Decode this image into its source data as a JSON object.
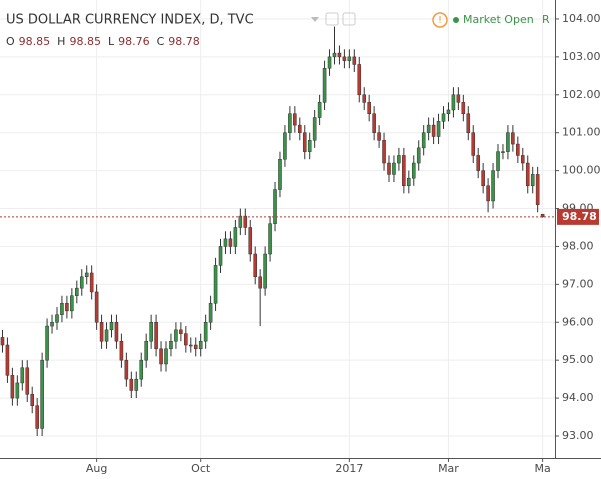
{
  "chart_data": {
    "type": "candlestick",
    "title": "US DOLLAR CURRENCY INDEX, D, TVC",
    "status": "Market Open",
    "status_extra": "R",
    "legend": [
      {
        "label": "O",
        "value": 98.85
      },
      {
        "label": "H",
        "value": 98.85
      },
      {
        "label": "L",
        "value": 98.76
      },
      {
        "label": "C",
        "value": 98.78
      }
    ],
    "up_color": "#3a9447",
    "down_color": "#b83a30",
    "grid": true,
    "xlim": [
      -0.5,
      111.5
    ],
    "xticks": [
      {
        "value": 19,
        "label": "Aug"
      },
      {
        "value": 40,
        "label": "Oct"
      },
      {
        "value": 70,
        "label": "2017"
      },
      {
        "value": 90,
        "label": "Mar"
      },
      {
        "value": 109,
        "label": "Ma"
      }
    ],
    "ylim": [
      92.42,
      104.5
    ],
    "yticks": [
      {
        "value": 93,
        "label": "93.00"
      },
      {
        "value": 94,
        "label": "94.00"
      },
      {
        "value": 95,
        "label": "95.00"
      },
      {
        "value": 96,
        "label": "96.00"
      },
      {
        "value": 97,
        "label": "97.00"
      },
      {
        "value": 98,
        "label": "98.00"
      },
      {
        "value": 99,
        "label": "99.00"
      },
      {
        "value": 100,
        "label": "100.00"
      },
      {
        "value": 101,
        "label": "101.00"
      },
      {
        "value": 102,
        "label": "102.00"
      },
      {
        "value": 103,
        "label": "103.00"
      },
      {
        "value": 104,
        "label": "104.00"
      }
    ],
    "open": [
      95.6,
      95.4,
      94.6,
      94.0,
      94.4,
      94.8,
      94.1,
      93.8,
      93.2,
      95.0,
      95.9,
      96.0,
      96.2,
      96.5,
      96.3,
      96.7,
      96.9,
      97.2,
      97.3,
      96.8,
      96.0,
      95.5,
      95.8,
      96.0,
      95.5,
      95.0,
      94.5,
      94.2,
      94.5,
      95.0,
      95.5,
      96.0,
      95.3,
      94.9,
      95.3,
      95.5,
      95.8,
      95.7,
      95.4,
      95.4,
      95.3,
      95.5,
      96.0,
      96.5,
      97.5,
      98.0,
      98.2,
      98.0,
      98.5,
      98.8,
      98.5,
      97.8,
      97.2,
      96.9,
      97.8,
      98.6,
      99.5,
      100.3,
      101.0,
      101.5,
      101.2,
      101.0,
      100.5,
      100.8,
      101.4,
      101.8,
      102.7,
      103.0,
      103.1,
      103.0,
      102.9,
      103.0,
      102.8,
      102.0,
      101.8,
      101.5,
      101.0,
      100.8,
      100.2,
      99.9,
      100.2,
      100.4,
      99.6,
      99.8,
      100.2,
      100.6,
      101.0,
      101.2,
      100.9,
      101.3,
      101.5,
      101.6,
      102.0,
      101.8,
      101.5,
      101.0,
      100.4,
      100.0,
      99.6,
      99.2,
      100.0,
      100.5,
      100.5,
      101.0,
      100.7,
      100.4,
      100.2,
      99.6,
      99.9,
      98.85
    ],
    "high": [
      95.8,
      95.6,
      94.8,
      94.6,
      95.0,
      95.0,
      94.3,
      94.0,
      95.2,
      96.1,
      96.2,
      96.4,
      96.7,
      96.7,
      96.9,
      97.1,
      97.4,
      97.5,
      97.5,
      97.0,
      96.2,
      96.0,
      96.2,
      96.2,
      95.7,
      95.2,
      94.7,
      94.7,
      95.2,
      95.7,
      96.2,
      96.2,
      95.5,
      95.5,
      95.7,
      96.0,
      96.0,
      95.9,
      95.6,
      95.6,
      95.7,
      96.2,
      96.7,
      97.7,
      98.2,
      98.4,
      98.4,
      98.7,
      99.0,
      99.0,
      98.7,
      98.0,
      97.4,
      98.0,
      98.8,
      99.7,
      100.5,
      101.2,
      101.7,
      101.7,
      101.4,
      101.2,
      101.0,
      101.6,
      102.0,
      102.9,
      103.2,
      103.8,
      103.3,
      103.2,
      103.2,
      103.2,
      103.0,
      102.2,
      102.0,
      101.7,
      101.2,
      101.0,
      100.4,
      100.4,
      100.6,
      100.6,
      100.0,
      100.4,
      100.8,
      101.2,
      101.4,
      101.4,
      101.5,
      101.7,
      101.8,
      102.2,
      102.2,
      102.0,
      101.7,
      101.2,
      100.6,
      100.2,
      99.8,
      100.2,
      100.7,
      100.7,
      101.2,
      101.2,
      100.9,
      100.6,
      100.4,
      100.1,
      100.1,
      98.85
    ],
    "low": [
      95.2,
      94.4,
      93.8,
      93.8,
      94.2,
      93.9,
      93.6,
      93.0,
      93.0,
      94.8,
      95.7,
      95.8,
      96.0,
      96.1,
      96.1,
      96.5,
      96.7,
      97.0,
      96.6,
      95.8,
      95.3,
      95.3,
      95.6,
      95.3,
      94.8,
      94.3,
      94.0,
      94.0,
      94.3,
      94.8,
      95.3,
      95.1,
      94.7,
      94.7,
      95.1,
      95.3,
      95.5,
      95.2,
      95.2,
      95.1,
      95.1,
      95.3,
      95.8,
      96.3,
      97.3,
      97.8,
      97.8,
      97.8,
      98.3,
      98.3,
      97.6,
      97.0,
      95.9,
      96.7,
      97.6,
      98.4,
      99.3,
      100.1,
      100.8,
      101.0,
      100.8,
      100.3,
      100.3,
      100.6,
      101.2,
      101.6,
      102.5,
      102.8,
      102.8,
      102.7,
      102.7,
      102.6,
      101.8,
      101.6,
      101.3,
      100.8,
      100.6,
      100.0,
      99.7,
      99.7,
      100.0,
      99.4,
      99.4,
      99.6,
      100.0,
      100.4,
      100.8,
      100.7,
      100.7,
      101.1,
      101.3,
      101.4,
      101.6,
      101.3,
      100.8,
      100.2,
      99.8,
      99.4,
      98.9,
      99.0,
      99.8,
      100.3,
      100.3,
      100.5,
      100.2,
      100.0,
      99.4,
      99.4,
      98.9,
      98.76
    ],
    "close": [
      95.4,
      94.6,
      94.0,
      94.4,
      94.8,
      94.1,
      93.8,
      93.2,
      95.0,
      95.9,
      96.0,
      96.2,
      96.5,
      96.3,
      96.7,
      96.9,
      97.2,
      97.3,
      96.8,
      96.0,
      95.5,
      95.8,
      96.0,
      95.5,
      95.0,
      94.5,
      94.2,
      94.5,
      95.0,
      95.5,
      96.0,
      95.3,
      94.9,
      95.3,
      95.5,
      95.8,
      95.7,
      95.4,
      95.4,
      95.3,
      95.5,
      96.0,
      96.5,
      97.5,
      98.0,
      98.2,
      98.0,
      98.5,
      98.8,
      98.5,
      97.8,
      97.2,
      96.9,
      97.8,
      98.6,
      99.5,
      100.3,
      101.0,
      101.5,
      101.2,
      101.0,
      100.5,
      100.8,
      101.4,
      101.8,
      102.7,
      103.0,
      103.1,
      103.0,
      102.9,
      103.0,
      102.8,
      102.0,
      101.8,
      101.5,
      101.0,
      100.8,
      100.2,
      99.9,
      100.2,
      100.4,
      99.6,
      99.8,
      100.2,
      100.6,
      101.0,
      101.2,
      100.9,
      101.3,
      101.5,
      101.6,
      102.0,
      101.8,
      101.5,
      101.0,
      100.4,
      100.0,
      99.6,
      99.2,
      100.0,
      100.5,
      100.5,
      101.0,
      100.7,
      100.4,
      100.2,
      99.6,
      99.9,
      99.1,
      98.78
    ]
  }
}
